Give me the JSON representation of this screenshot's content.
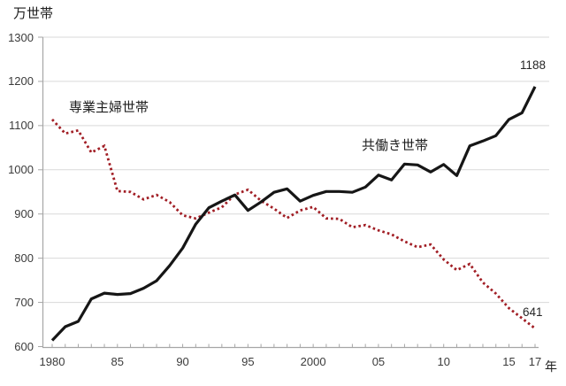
{
  "colors": {
    "background": "#FFFFFF",
    "grid": "#D9D9D9",
    "axis": "#A6A6A6",
    "tick_text": "#3B3B3B",
    "label_text": "#1F1F1F"
  },
  "chart_data": {
    "type": "line",
    "title": "",
    "y_axis_title": "万世帯",
    "x_axis_suffix": "年",
    "xlabel": "",
    "ylabel": "万世帯",
    "ylim": [
      600,
      1300
    ],
    "ytick_step": 100,
    "ytick_labels": [
      "1300",
      "1200",
      "1100",
      "1000",
      "900",
      "800",
      "700",
      "600"
    ],
    "xtick_labeled": [
      {
        "year": 1980,
        "label": "1980"
      },
      {
        "year": 1985,
        "label": "85"
      },
      {
        "year": 1990,
        "label": "90"
      },
      {
        "year": 1995,
        "label": "95"
      },
      {
        "year": 2000,
        "label": "2000"
      },
      {
        "year": 2005,
        "label": "05"
      },
      {
        "year": 2010,
        "label": "10"
      },
      {
        "year": 2015,
        "label": "15"
      },
      {
        "year": 2017,
        "label": "17"
      }
    ],
    "grid": "horizontal",
    "legend_position": "inline-labels",
    "x": [
      1980,
      1981,
      1982,
      1983,
      1984,
      1985,
      1986,
      1987,
      1988,
      1989,
      1990,
      1991,
      1992,
      1993,
      1994,
      1995,
      1996,
      1997,
      1998,
      1999,
      2000,
      2001,
      2002,
      2003,
      2004,
      2005,
      2006,
      2007,
      2008,
      2009,
      2010,
      2011,
      2012,
      2013,
      2014,
      2015,
      2016,
      2017
    ],
    "series": [
      {
        "name": "専業主婦世帯",
        "style": "dotted",
        "color": "#A11E25",
        "end_label": "641",
        "values": [
          1114,
          1082,
          1089,
          1039,
          1054,
          952,
          950,
          933,
          943,
          927,
          897,
          890,
          903,
          915,
          944,
          955,
          930,
          912,
          891,
          908,
          916,
          890,
          889,
          870,
          875,
          863,
          854,
          838,
          825,
          831,
          797,
          773,
          787,
          745,
          720,
          687,
          664,
          641
        ]
      },
      {
        "name": "共働き世帯",
        "style": "solid",
        "color": "#161616",
        "end_label": "1188",
        "values": [
          614,
          645,
          657,
          708,
          721,
          718,
          720,
          732,
          749,
          783,
          823,
          877,
          914,
          929,
          943,
          908,
          927,
          949,
          957,
          929,
          942,
          951,
          951,
          949,
          961,
          988,
          977,
          1013,
          1011,
          995,
          1012,
          987,
          1054,
          1065,
          1077,
          1114,
          1129,
          1188
        ]
      }
    ]
  }
}
